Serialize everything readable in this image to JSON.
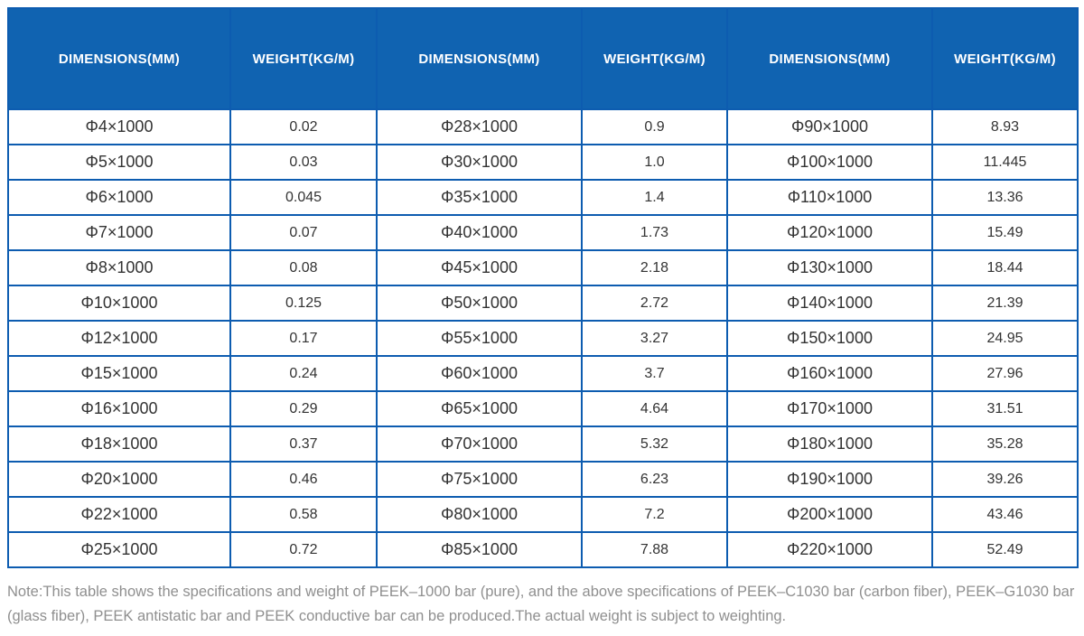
{
  "colors": {
    "header_bg": "#1063b1",
    "header_text": "#ffffff",
    "border": "#0d5cb0",
    "cell_text": "#333333",
    "note_text": "#8f8f8f"
  },
  "table": {
    "columns": [
      {
        "label": "DIMENSIONS(MM)"
      },
      {
        "label": "WEIGHT(KG/M)"
      },
      {
        "label": "DIMENSIONS(MM)"
      },
      {
        "label": "WEIGHT(KG/M)"
      },
      {
        "label": "DIMENSIONS(MM)"
      },
      {
        "label": "WEIGHT(KG/M)"
      }
    ],
    "rows": [
      [
        "Φ4×1000",
        "0.02",
        "Φ28×1000",
        "0.9",
        "Φ90×1000",
        "8.93"
      ],
      [
        "Φ5×1000",
        "0.03",
        "Φ30×1000",
        "1.0",
        "Φ100×1000",
        "11.445"
      ],
      [
        "Φ6×1000",
        "0.045",
        "Φ35×1000",
        "1.4",
        "Φ110×1000",
        "13.36"
      ],
      [
        "Φ7×1000",
        "0.07",
        "Φ40×1000",
        "1.73",
        "Φ120×1000",
        "15.49"
      ],
      [
        "Φ8×1000",
        "0.08",
        "Φ45×1000",
        "2.18",
        "Φ130×1000",
        "18.44"
      ],
      [
        "Φ10×1000",
        "0.125",
        "Φ50×1000",
        "2.72",
        "Φ140×1000",
        "21.39"
      ],
      [
        "Φ12×1000",
        "0.17",
        "Φ55×1000",
        "3.27",
        "Φ150×1000",
        "24.95"
      ],
      [
        "Φ15×1000",
        "0.24",
        "Φ60×1000",
        "3.7",
        "Φ160×1000",
        "27.96"
      ],
      [
        "Φ16×1000",
        "0.29",
        "Φ65×1000",
        "4.64",
        "Φ170×1000",
        "31.51"
      ],
      [
        "Φ18×1000",
        "0.37",
        "Φ70×1000",
        "5.32",
        "Φ180×1000",
        "35.28"
      ],
      [
        "Φ20×1000",
        "0.46",
        "Φ75×1000",
        "6.23",
        "Φ190×1000",
        "39.26"
      ],
      [
        "Φ22×1000",
        "0.58",
        "Φ80×1000",
        "7.2",
        "Φ200×1000",
        "43.46"
      ],
      [
        "Φ25×1000",
        "0.72",
        "Φ85×1000",
        "7.88",
        "Φ220×1000",
        "52.49"
      ]
    ]
  },
  "note": "Note:This table shows the specifications and weight of PEEK–1000 bar (pure), and the above specifications of PEEK–C1030 bar (carbon fiber), PEEK–G1030 bar (glass fiber), PEEK antistatic bar and PEEK conductive bar can be produced.The actual weight is subject to weighting."
}
